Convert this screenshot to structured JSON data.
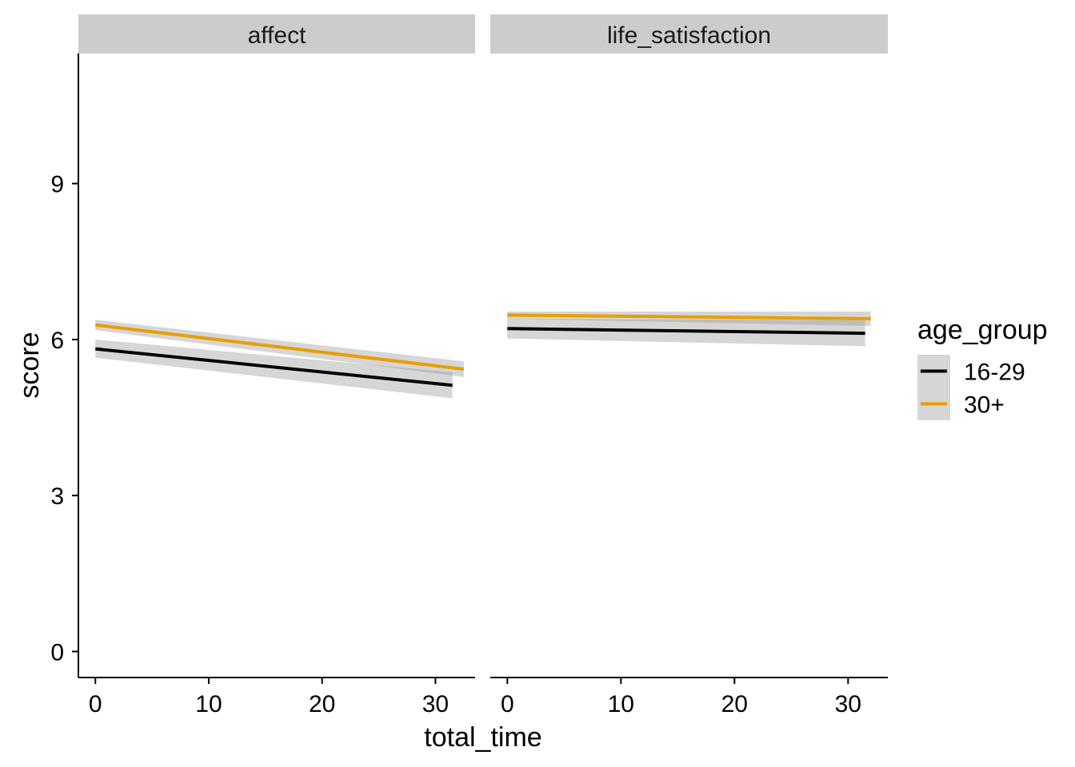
{
  "chart_data": {
    "type": "line",
    "facet_variable": "measure",
    "panels": [
      {
        "label": "affect",
        "series": [
          {
            "name": "16-29",
            "x": [
              0,
              31.5
            ],
            "y": [
              5.82,
              5.12
            ],
            "ci_lower": [
              5.65,
              4.87
            ],
            "ci_upper": [
              6.0,
              5.37
            ]
          },
          {
            "name": "30+",
            "x": [
              0,
              32.5
            ],
            "y": [
              6.28,
              5.43
            ],
            "ci_lower": [
              6.18,
              5.28
            ],
            "ci_upper": [
              6.38,
              5.58
            ]
          }
        ]
      },
      {
        "label": "life_satisfaction",
        "series": [
          {
            "name": "16-29",
            "x": [
              0,
              31.5
            ],
            "y": [
              6.21,
              6.12
            ],
            "ci_lower": [
              6.02,
              5.87
            ],
            "ci_upper": [
              6.4,
              6.37
            ]
          },
          {
            "name": "30+",
            "x": [
              0,
              32
            ],
            "y": [
              6.47,
              6.4
            ],
            "ci_lower": [
              6.4,
              6.26
            ],
            "ci_upper": [
              6.54,
              6.54
            ]
          }
        ]
      }
    ],
    "xlabel": "total_time",
    "ylabel": "score",
    "x_ticks": [
      "0",
      "10",
      "20",
      "30"
    ],
    "y_ticks": [
      "0",
      "3",
      "6",
      "9"
    ],
    "xlim": [
      -1.5,
      33.5
    ],
    "ylim": [
      -0.5,
      11.5
    ],
    "legend": {
      "title": "age_group",
      "position": "right",
      "entries": [
        {
          "name": "16-29",
          "color": "#000000"
        },
        {
          "name": "30+",
          "color": "#E69F00"
        }
      ]
    },
    "ci_fill_color": "#999999",
    "strip_color": "#CCCCCC",
    "grid": false
  }
}
